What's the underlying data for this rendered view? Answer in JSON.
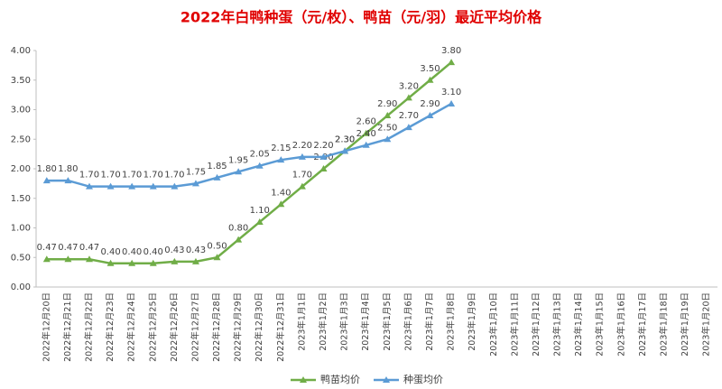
{
  "chart_data": {
    "type": "line",
    "title": "2022年白鸭种蛋（元/枚）、鸭苗（元/羽）最近平均价格",
    "categories": [
      "2022年12月20日",
      "2022年12月21日",
      "2022年12月22日",
      "2022年12月23日",
      "2022年12月24日",
      "2022年12月25日",
      "2022年12月26日",
      "2022年12月27日",
      "2022年12月28日",
      "2022年12月29日",
      "2022年12月30日",
      "2022年12月31日",
      "2023年1月1日",
      "2023年1月2日",
      "2023年1月3日",
      "2023年1月4日",
      "2023年1月5日",
      "2023年1月6日",
      "2023年1月7日",
      "2023年1月8日",
      "2023年1月9日",
      "2023年1月10日",
      "2023年1月11日",
      "2023年1月12日",
      "2023年1月13日",
      "2023年1月14日",
      "2023年1月15日",
      "2023年1月16日",
      "2023年1月17日",
      "2023年1月18日",
      "2023年1月19日",
      "2023年1月20日"
    ],
    "series": [
      {
        "name": "鸭苗均价",
        "color": "#70ad47",
        "values": [
          0.47,
          0.47,
          0.47,
          0.4,
          0.4,
          0.4,
          0.43,
          0.43,
          0.5,
          0.8,
          1.1,
          1.4,
          1.7,
          2.0,
          2.3,
          2.6,
          2.9,
          3.2,
          3.5,
          3.8,
          null,
          null,
          null,
          null,
          null,
          null,
          null,
          null,
          null,
          null,
          null,
          null
        ],
        "value_labels": [
          "0.47",
          "0.47",
          "0.47",
          "0.40",
          "0.40",
          "0.40",
          "0.43",
          "0.43",
          "0.50",
          "0.80",
          "1.10",
          "1.40",
          "1.70",
          "2.00",
          "2.30",
          "2.60",
          "2.90",
          "3.20",
          "3.50",
          "3.80",
          null,
          null,
          null,
          null,
          null,
          null,
          null,
          null,
          null,
          null,
          null,
          null
        ]
      },
      {
        "name": "种蛋均价",
        "color": "#5b9bd5",
        "values": [
          1.8,
          1.8,
          1.7,
          1.7,
          1.7,
          1.7,
          1.7,
          1.75,
          1.85,
          1.95,
          2.05,
          2.15,
          2.2,
          2.2,
          2.3,
          2.4,
          2.5,
          2.7,
          2.9,
          3.1,
          null,
          null,
          null,
          null,
          null,
          null,
          null,
          null,
          null,
          null,
          null,
          null
        ],
        "value_labels": [
          "1.80",
          "1.80",
          "1.70",
          "1.70",
          "1.70",
          "1.70",
          "1.70",
          "1.75",
          "1.85",
          "1.95",
          "2.05",
          "2.15",
          "2.20",
          "2.20",
          "2.30",
          "2.40",
          "2.50",
          "2.70",
          "2.90",
          "3.10",
          null,
          null,
          null,
          null,
          null,
          null,
          null,
          null,
          null,
          null,
          null,
          null
        ]
      }
    ],
    "ylim": [
      0,
      4
    ],
    "yticks": [
      {
        "value": 0,
        "label": "0.00"
      },
      {
        "value": 0.5,
        "label": "0.50"
      },
      {
        "value": 1,
        "label": "1.00"
      },
      {
        "value": 1.5,
        "label": "1.50"
      },
      {
        "value": 2,
        "label": "2.00"
      },
      {
        "value": 2.5,
        "label": "2.50"
      },
      {
        "value": 3,
        "label": "3.00"
      },
      {
        "value": 3.5,
        "label": "3.50"
      },
      {
        "value": 4,
        "label": "4.00"
      }
    ],
    "grid": false,
    "legend": "bottom"
  }
}
